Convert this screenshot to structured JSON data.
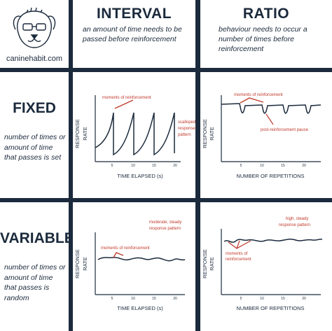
{
  "logo": {
    "site": "caninehabit.com"
  },
  "columns": {
    "interval": {
      "title": "INTERVAL",
      "description": "an amount of time needs to be passed before reinforcement"
    },
    "ratio": {
      "title": "RATIO",
      "description": "behaviour needs to occur a number of times before reinforcement"
    }
  },
  "rows": {
    "fixed": {
      "title": "FIXED",
      "description": "number of times or amount of time that passes is set"
    },
    "variable": {
      "title": "VARIABLE",
      "description": "number of times or amount of time that passes is random"
    }
  },
  "charts": {
    "fixed_interval": {
      "ylabel_line1": "RESPONSE",
      "ylabel_line2": "RATE",
      "xlabel": "TIME ELAPSED (s)",
      "ticks": [
        "5",
        "10",
        "15",
        "20"
      ],
      "annotation": "moments of reinforcement",
      "note_line1": "scalloped",
      "note_line2": "response",
      "note_line3": "pattern"
    },
    "fixed_ratio": {
      "ylabel_line1": "RESPONSE",
      "ylabel_line2": "RATE",
      "xlabel": "NUMBER OF REPETITIONS",
      "ticks": [
        "5",
        "10",
        "15",
        "20"
      ],
      "annotation": "moments of reinforcement",
      "note": "post-reinforcement pause"
    },
    "variable_interval": {
      "ylabel_line1": "RESPONSE",
      "ylabel_line2": "RATE",
      "xlabel": "TIME ELAPSED (s)",
      "ticks": [
        "5",
        "10",
        "15",
        "20"
      ],
      "annotation": "moments of reinforcement",
      "note_line1": "moderate, steady",
      "note_line2": "response pattern"
    },
    "variable_ratio": {
      "ylabel_line1": "RESPONSE",
      "ylabel_line2": "RATE",
      "xlabel": "NUMBER OF REPETITIONS",
      "ticks": [
        "5",
        "10",
        "15",
        "20"
      ],
      "annotation_line1": "moments of",
      "annotation_line2": "reinforcement",
      "note_line1": "high, steady",
      "note_line2": "response pattern"
    }
  },
  "colors": {
    "frame": "#1b2a3c",
    "ink": "#1b2a3c",
    "annotation": "#c0392b"
  }
}
